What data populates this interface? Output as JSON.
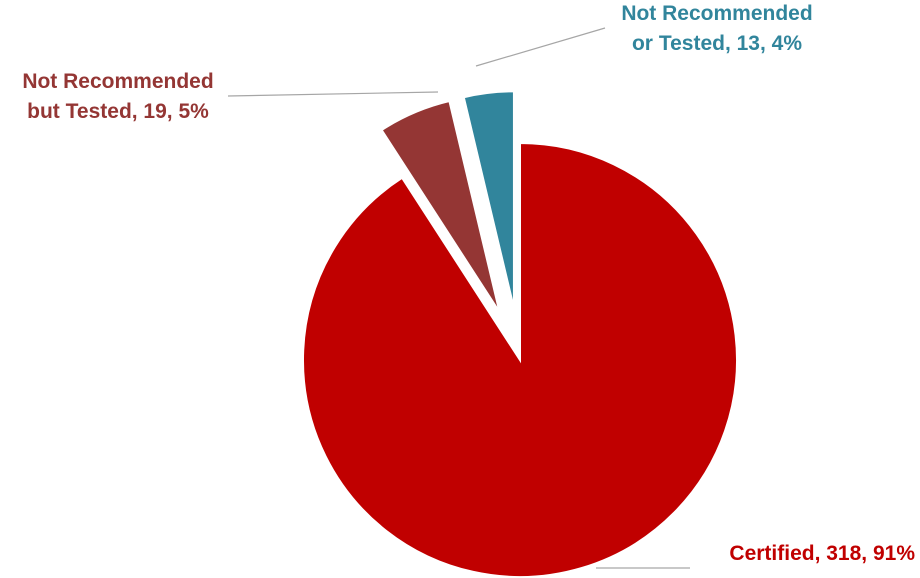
{
  "chart_data": {
    "type": "pie",
    "title": "",
    "slices": [
      {
        "name": "Certified",
        "value": 318,
        "percent": "91%",
        "color": "#C00000",
        "label_color": "#C00000",
        "label_lines": [
          "Certified, 318, 91%"
        ]
      },
      {
        "name": "Not Recommended but Tested",
        "value": 19,
        "percent": "5%",
        "color": "#943634",
        "label_color": "#943634",
        "label_lines": [
          "Not Recommended",
          "but Tested, 19, 5%"
        ]
      },
      {
        "name": "Not Recommended or Tested",
        "value": 13,
        "percent": "4%",
        "color": "#31859C",
        "label_color": "#31859C",
        "label_lines": [
          "Not Recommended",
          "or Tested, 13, 4%"
        ]
      }
    ]
  }
}
